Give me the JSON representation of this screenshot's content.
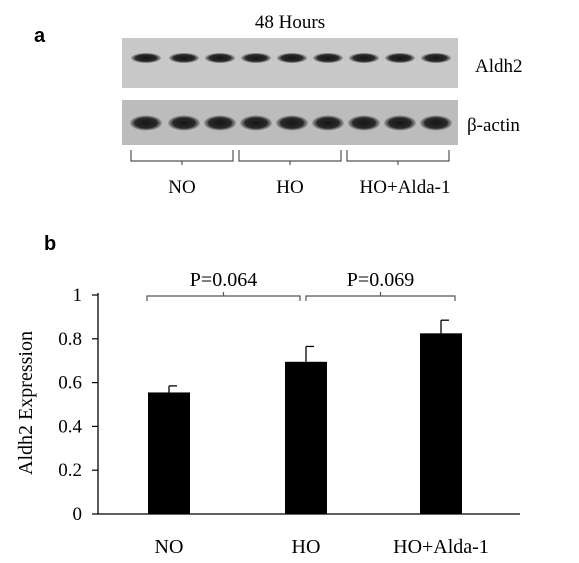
{
  "panel_a": {
    "label": "a",
    "title": "48 Hours",
    "blots": [
      {
        "name": "Aldh2",
        "bands": 9
      },
      {
        "name": "β-actin",
        "bands": 9
      }
    ],
    "groups": [
      "NO",
      "HO",
      "HO+Alda-1"
    ]
  },
  "panel_b": {
    "label": "b",
    "comparisons": [
      {
        "from": "NO",
        "to": "HO",
        "label": "P=0.064"
      },
      {
        "from": "HO",
        "to": "HO+Alda-1",
        "label": "P=0.069"
      }
    ]
  },
  "chart_data": {
    "type": "bar",
    "categories": [
      "NO",
      "HO",
      "HO+Alda-1"
    ],
    "values": [
      0.555,
      0.695,
      0.825
    ],
    "errors": [
      0.03,
      0.07,
      0.06
    ],
    "title": "",
    "xlabel": "",
    "ylabel": "Aldh2 Expression",
    "ylim": [
      0,
      1
    ],
    "yticks": [
      0,
      0.2,
      0.4,
      0.6,
      0.8,
      1
    ],
    "ytick_labels": [
      "0",
      "0.2",
      "0.4",
      "0.6",
      "0.8",
      "1"
    ],
    "grid": false,
    "colors": {
      "bar": "#000000",
      "error": "#000000"
    }
  }
}
